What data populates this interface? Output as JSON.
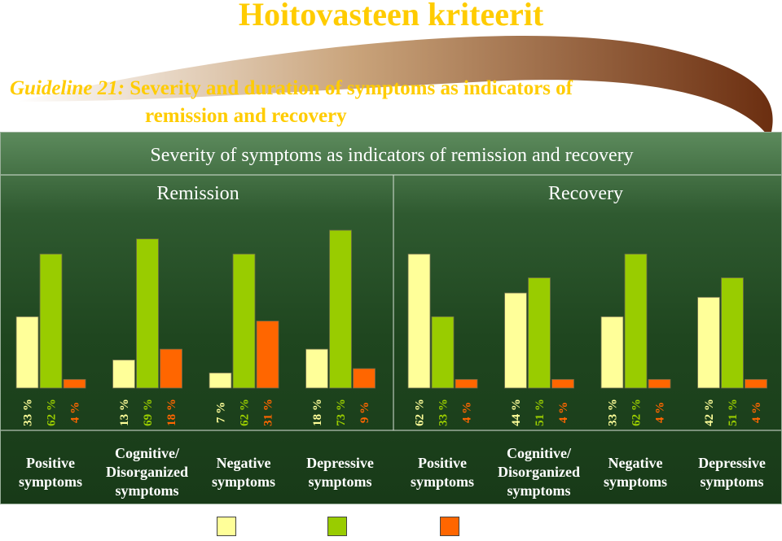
{
  "header": {
    "title": "Hoitovasteen kriteerit",
    "guideline_lead": "Guideline 21:",
    "guideline_line1": "Severity and duration of symptoms as indicators of",
    "guideline_line2": "remission and recovery"
  },
  "colors": {
    "series1": "#ffff99",
    "series2": "#99cc00",
    "series3": "#ff6600"
  },
  "chart_data": {
    "type": "bar",
    "title": "Severity of symptoms as indicators of remission and recovery",
    "groups": [
      "Remission",
      "Recovery"
    ],
    "categories": [
      "Positive symptoms",
      "Cognitive/ Disorganized symptoms",
      "Negative symptoms",
      "Depressive symptoms"
    ],
    "category_lines": [
      [
        "Positive",
        "symptoms"
      ],
      [
        "Cognitive/",
        "Disorganized",
        "symptoms"
      ],
      [
        "Negative",
        "symptoms"
      ],
      [
        "Depressive",
        "symptoms"
      ]
    ],
    "unit": "%",
    "values": {
      "Remission": [
        [
          33,
          62,
          4
        ],
        [
          13,
          69,
          18
        ],
        [
          7,
          62,
          31
        ],
        [
          18,
          73,
          9
        ]
      ],
      "Recovery": [
        [
          62,
          33,
          4
        ],
        [
          44,
          51,
          4
        ],
        [
          33,
          62,
          4
        ],
        [
          42,
          51,
          4
        ]
      ]
    },
    "series": [
      {
        "color": "#ffff99"
      },
      {
        "color": "#99cc00"
      },
      {
        "color": "#ff6600"
      }
    ],
    "ylim": [
      0,
      75
    ],
    "legend": "bottom-center"
  }
}
